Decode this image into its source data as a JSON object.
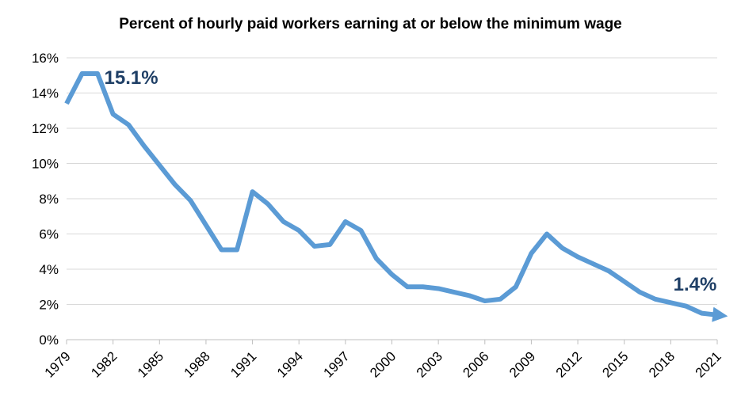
{
  "chart_data": {
    "type": "line",
    "title": "Percent of hourly paid workers earning at or below the minimum wage",
    "xlabel": "",
    "ylabel": "",
    "x_tick_labels": [
      "1979",
      "1982",
      "1985",
      "1988",
      "1991",
      "1994",
      "1997",
      "2000",
      "2003",
      "2006",
      "2009",
      "2012",
      "2015",
      "2018",
      "2021"
    ],
    "y_tick_labels": [
      "0%",
      "2%",
      "4%",
      "6%",
      "8%",
      "10%",
      "12%",
      "14%",
      "16%"
    ],
    "ylim": [
      0,
      16
    ],
    "xlim": [
      1979,
      2021
    ],
    "grid": "horizontal",
    "legend": "none",
    "series": [
      {
        "color": "#5b9bd5",
        "x": [
          1979,
          1980,
          1981,
          1982,
          1983,
          1984,
          1985,
          1986,
          1987,
          1988,
          1989,
          1990,
          1991,
          1992,
          1993,
          1994,
          1995,
          1996,
          1997,
          1998,
          1999,
          2000,
          2001,
          2002,
          2003,
          2004,
          2005,
          2006,
          2007,
          2008,
          2009,
          2010,
          2011,
          2012,
          2013,
          2014,
          2015,
          2016,
          2017,
          2018,
          2019,
          2020,
          2021
        ],
        "values": [
          13.4,
          15.1,
          15.1,
          12.8,
          12.2,
          11.0,
          9.9,
          8.8,
          7.9,
          6.5,
          5.1,
          5.1,
          8.4,
          7.7,
          6.7,
          6.2,
          5.3,
          5.4,
          6.7,
          6.2,
          4.6,
          3.7,
          3.0,
          3.0,
          2.9,
          2.7,
          2.5,
          2.2,
          2.3,
          3.0,
          4.9,
          6.0,
          5.2,
          4.7,
          4.3,
          3.9,
          3.3,
          2.7,
          2.3,
          2.1,
          1.9,
          1.5,
          1.4
        ]
      }
    ],
    "annotations": [
      {
        "text": "15.1%",
        "x": 1980,
        "y": 15.1
      },
      {
        "text": "1.4%",
        "x": 2021,
        "y": 1.4
      }
    ]
  }
}
